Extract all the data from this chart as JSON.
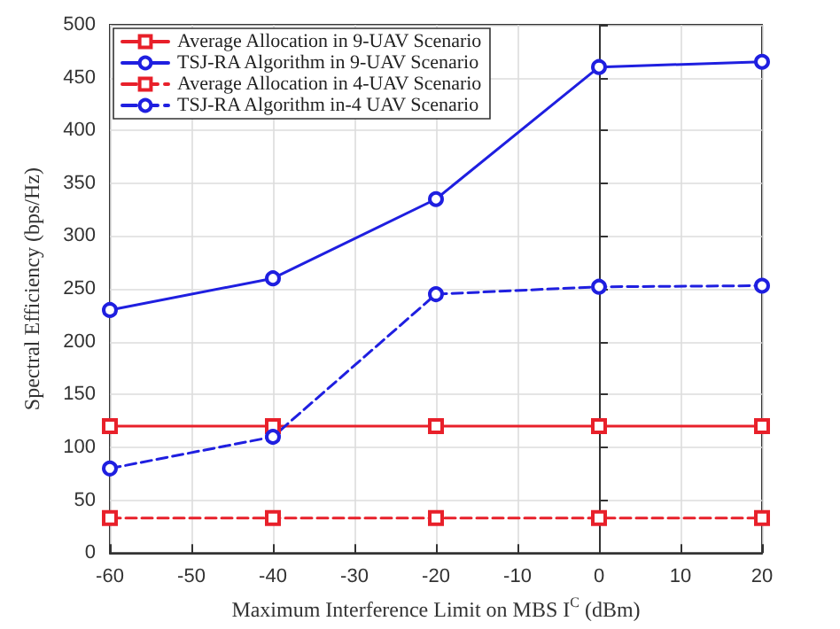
{
  "chart_data": {
    "type": "line",
    "xlabel": "Maximum Interference Limit on MBS I$^{C}$ (dBm)",
    "ylabel": "Spectral Efficiency (bps/Hz)",
    "x": [
      -60,
      -40,
      -20,
      0,
      20
    ],
    "xlim": [
      -60,
      20
    ],
    "xticks": [
      -60,
      -50,
      -40,
      -30,
      -20,
      -10,
      0,
      10,
      20
    ],
    "ylim": [
      0,
      500
    ],
    "yticks": [
      0,
      50,
      100,
      150,
      200,
      250,
      300,
      350,
      400,
      450,
      500
    ],
    "grid": true,
    "legend": "top left",
    "series": [
      {
        "name": "Average Allocation in 9-UAV Scenario",
        "color": "#e8202a",
        "values": [
          120,
          120,
          120,
          120,
          120
        ],
        "marker": "square",
        "line_style": "solid"
      },
      {
        "name": "TSJ-RA Algorithm in 9-UAV Scenario",
        "color": "#1f1fe0",
        "values": [
          230,
          260,
          335,
          460,
          465
        ],
        "marker": "circle",
        "line_style": "solid"
      },
      {
        "name": "Average Allocation in 4-UAV Scenario",
        "color": "#e8202a",
        "values": [
          33,
          33,
          33,
          33,
          33
        ],
        "marker": "square",
        "line_style": "dashed"
      },
      {
        "name": "TSJ-RA Algorithm in-4 UAV Scenario",
        "color": "#1f1fe0",
        "values": [
          80,
          110,
          245,
          252,
          253
        ],
        "marker": "circle",
        "line_style": "dashed"
      }
    ]
  }
}
